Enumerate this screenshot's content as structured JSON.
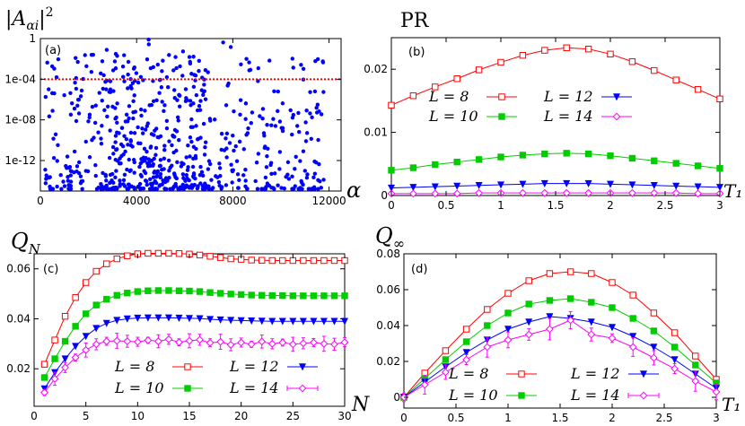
{
  "panels": {
    "a": {
      "label": "(a)",
      "ylabel": "|A_αi|^2",
      "xlabel": "α",
      "yticks": [
        "1",
        "1e-04",
        "1e-08",
        "1e-12"
      ],
      "xticks": [
        "0",
        "4000",
        "8000",
        "12000"
      ]
    },
    "b": {
      "label": "(b)",
      "ylabel": "PR",
      "xlabel": "T₁",
      "yticks": [
        "0",
        "0.01",
        "0.02"
      ],
      "xticks": [
        "0",
        "0.5",
        "1",
        "1.5",
        "2",
        "2.5",
        "3"
      ],
      "legend": [
        "L = 8",
        "L = 10",
        "L = 12",
        "L = 14"
      ]
    },
    "c": {
      "label": "(c)",
      "ylabel": "Q_N",
      "xlabel": "N",
      "yticks": [
        "0.02",
        "0.04",
        "0.06"
      ],
      "xticks": [
        "0",
        "5",
        "10",
        "15",
        "20",
        "25",
        "30"
      ],
      "legend": [
        "L = 8",
        "L = 10",
        "L = 12",
        "L = 14"
      ]
    },
    "d": {
      "label": "(d)",
      "ylabel": "Q_∞",
      "xlabel": "T₁",
      "yticks": [
        "0",
        "0.02",
        "0.04",
        "0.06",
        "0.08"
      ],
      "xticks": [
        "0",
        "0.5",
        "1",
        "1.5",
        "2",
        "2.5",
        "3"
      ],
      "legend": [
        "L = 8",
        "L = 10",
        "L = 12",
        "L = 14"
      ]
    }
  },
  "chart_data": [
    {
      "panel": "a",
      "type": "scatter",
      "title": "",
      "xlabel": "α",
      "ylabel": "|A_αi|^2",
      "yscale": "log",
      "xlim": [
        0,
        12500
      ],
      "ylim_log10": [
        -15,
        0
      ],
      "threshold": {
        "value": 0.0001,
        "color": "#ff0000",
        "style": "dotted"
      },
      "color": "#0000ff",
      "n_points": 700,
      "note": "Scatter of ~700 eigenstate overlaps; dense below 1e-12, sparse up to 1, peak near alpha≈4500."
    },
    {
      "panel": "b",
      "type": "line",
      "xlabel": "T₁",
      "ylabel": "PR",
      "xlim": [
        0,
        3
      ],
      "ylim": [
        0,
        0.025
      ],
      "x": [
        0,
        0.2,
        0.4,
        0.6,
        0.8,
        1.0,
        1.2,
        1.4,
        1.6,
        1.8,
        2.0,
        2.2,
        2.4,
        2.6,
        2.8,
        3.0
      ],
      "series": [
        {
          "name": "L = 8",
          "color": "#ff0000",
          "marker": "square-open",
          "values": [
            0.0143,
            0.0158,
            0.0172,
            0.0185,
            0.0199,
            0.0211,
            0.0222,
            0.023,
            0.0234,
            0.0232,
            0.0224,
            0.0212,
            0.0198,
            0.0183,
            0.0168,
            0.0153
          ]
        },
        {
          "name": "L = 10",
          "color": "#00cc00",
          "marker": "square-filled",
          "values": [
            0.004,
            0.0044,
            0.0049,
            0.0053,
            0.0057,
            0.0061,
            0.0064,
            0.0066,
            0.0067,
            0.0066,
            0.0063,
            0.0059,
            0.0055,
            0.0051,
            0.0047,
            0.0043
          ]
        },
        {
          "name": "L = 12",
          "color": "#0000ff",
          "marker": "triangle-down",
          "values": [
            0.0012,
            0.0013,
            0.0014,
            0.0015,
            0.0016,
            0.0017,
            0.0018,
            0.0019,
            0.0019,
            0.0019,
            0.0018,
            0.0017,
            0.0016,
            0.0015,
            0.0014,
            0.0013
          ]
        },
        {
          "name": "L = 14",
          "color": "#ff00ff",
          "marker": "diamond-open",
          "values": [
            0.0003,
            0.0003,
            0.0003,
            0.0003,
            0.0004,
            0.0004,
            0.0004,
            0.0004,
            0.0004,
            0.0004,
            0.0004,
            0.0004,
            0.0004,
            0.0004,
            0.0003,
            0.0003
          ]
        }
      ]
    },
    {
      "panel": "c",
      "type": "line",
      "xlabel": "N",
      "ylabel": "Q_N",
      "xlim": [
        0,
        30
      ],
      "ylim": [
        0.005,
        0.066
      ],
      "x": [
        1,
        2,
        3,
        4,
        5,
        6,
        7,
        8,
        9,
        10,
        11,
        12,
        13,
        14,
        15,
        16,
        17,
        18,
        19,
        20,
        21,
        22,
        23,
        24,
        25,
        26,
        27,
        28,
        29,
        30
      ],
      "series": [
        {
          "name": "L = 8",
          "color": "#ff0000",
          "marker": "square-open",
          "values": [
            0.0218,
            0.0315,
            0.041,
            0.0485,
            0.0545,
            0.059,
            0.062,
            0.064,
            0.0652,
            0.066,
            0.0662,
            0.0662,
            0.0662,
            0.0661,
            0.0659,
            0.0655,
            0.065,
            0.0645,
            0.064,
            0.0638,
            0.0635,
            0.0634,
            0.0633,
            0.0633,
            0.0633,
            0.0633,
            0.0633,
            0.0633,
            0.0633,
            0.0633
          ]
        },
        {
          "name": "L = 10",
          "color": "#00cc00",
          "marker": "square-filled",
          "values": [
            0.0165,
            0.024,
            0.031,
            0.037,
            0.042,
            0.0455,
            0.0478,
            0.0494,
            0.0503,
            0.0509,
            0.0512,
            0.0513,
            0.0513,
            0.0512,
            0.0511,
            0.0509,
            0.0505,
            0.0502,
            0.0499,
            0.0497,
            0.0495,
            0.0494,
            0.0493,
            0.0493,
            0.0492,
            0.0492,
            0.0492,
            0.0492,
            0.0492,
            0.0492
          ]
        },
        {
          "name": "L = 12",
          "color": "#0000ff",
          "marker": "triangle-down",
          "values": [
            0.012,
            0.0185,
            0.024,
            0.029,
            0.033,
            0.0362,
            0.0382,
            0.0394,
            0.04,
            0.0403,
            0.0404,
            0.0404,
            0.0404,
            0.0403,
            0.0402,
            0.0401,
            0.0398,
            0.0396,
            0.0394,
            0.0393,
            0.0392,
            0.0391,
            0.039,
            0.039,
            0.039,
            0.039,
            0.039,
            0.039,
            0.039,
            0.039
          ]
        },
        {
          "name": "L = 14",
          "color": "#ff00ff",
          "marker": "diamond-open",
          "values": [
            0.0105,
            0.016,
            0.0205,
            0.0245,
            0.0275,
            0.0298,
            0.031,
            0.0312,
            0.031,
            0.0308,
            0.0314,
            0.031,
            0.0318,
            0.0306,
            0.0312,
            0.0316,
            0.0304,
            0.0308,
            0.0296,
            0.0305,
            0.0298,
            0.0309,
            0.03,
            0.0305,
            0.0298,
            0.0302,
            0.0305,
            0.03,
            0.0298,
            0.0306
          ],
          "error": 0.002
        }
      ]
    },
    {
      "panel": "d",
      "type": "line",
      "xlabel": "T₁",
      "ylabel": "Q_∞",
      "xlim": [
        0,
        3
      ],
      "ylim": [
        -0.006,
        0.08
      ],
      "x": [
        0,
        0.2,
        0.4,
        0.6,
        0.8,
        1.0,
        1.2,
        1.4,
        1.6,
        1.8,
        2.0,
        2.2,
        2.4,
        2.6,
        2.8,
        3.0
      ],
      "series": [
        {
          "name": "L = 8",
          "color": "#ff0000",
          "marker": "square-open",
          "values": [
            0.0,
            0.0135,
            0.026,
            0.038,
            0.049,
            0.058,
            0.065,
            0.069,
            0.07,
            0.069,
            0.064,
            0.057,
            0.047,
            0.036,
            0.023,
            0.01
          ]
        },
        {
          "name": "L = 10",
          "color": "#00cc00",
          "marker": "square-filled",
          "values": [
            0.0,
            0.0105,
            0.021,
            0.031,
            0.04,
            0.047,
            0.052,
            0.054,
            0.055,
            0.053,
            0.05,
            0.044,
            0.037,
            0.028,
            0.018,
            0.008
          ]
        },
        {
          "name": "L = 12",
          "color": "#0000ff",
          "marker": "triangle-down",
          "values": [
            0.0,
            0.0085,
            0.017,
            0.025,
            0.032,
            0.038,
            0.042,
            0.045,
            0.044,
            0.042,
            0.039,
            0.034,
            0.028,
            0.021,
            0.013,
            0.005
          ]
        },
        {
          "name": "L = 14",
          "color": "#ff00ff",
          "marker": "diamond-open",
          "values": [
            0.0,
            0.007,
            0.014,
            0.021,
            0.028,
            0.032,
            0.035,
            0.038,
            0.043,
            0.035,
            0.033,
            0.028,
            0.022,
            0.016,
            0.009,
            0.003
          ],
          "error": 0.004
        }
      ]
    }
  ]
}
